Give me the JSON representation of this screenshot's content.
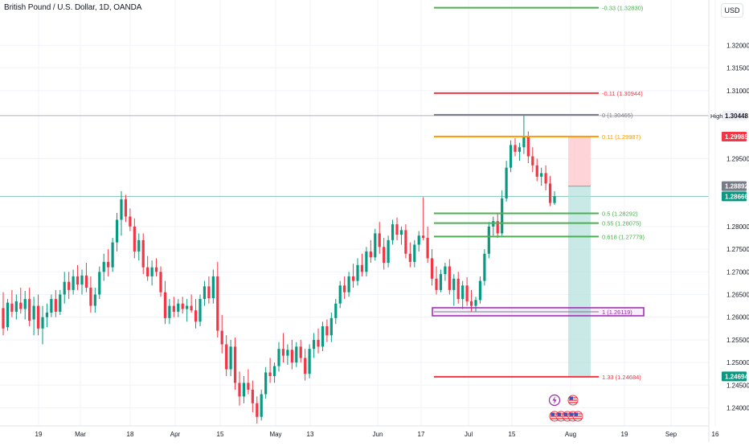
{
  "header": {
    "symbol_title": "British Pound / U.S. Dollar, 1D, OANDA",
    "currency_button": "USD"
  },
  "colors": {
    "up": "#089981",
    "down": "#f23645",
    "grid": "#f0f3fa",
    "axis_text": "#131722",
    "fib_green": "#4caf50",
    "fib_red": "#f23645",
    "fib_gray": "#787b86",
    "fib_orange": "#ff9800",
    "rect_purple": "#9c27b0",
    "target_zone": "#b2dfdb",
    "stop_zone": "#ffcdd2"
  },
  "price_axis": {
    "ticks": [
      "1.32000",
      "1.31500",
      "1.31000",
      "1.29500",
      "1.28000",
      "1.27500",
      "1.27000",
      "1.26500",
      "1.26000",
      "1.25500",
      "1.25000",
      "1.24500",
      "1.24000"
    ],
    "badges": [
      {
        "label": "High",
        "value": "1.30448",
        "style": "high"
      },
      {
        "label": "",
        "value": "1.29985",
        "style": "red"
      },
      {
        "label": "",
        "value": "1.28892",
        "style": "gray"
      },
      {
        "label": "",
        "value": "1.28666",
        "style": "green"
      },
      {
        "label": "",
        "value": "1.24694",
        "style": "green"
      }
    ]
  },
  "time_axis": {
    "labels": [
      "19",
      "Mar",
      "18",
      "Apr",
      "15",
      "May",
      "13",
      "Jun",
      "17",
      "Jul",
      "15",
      "Aug",
      "19",
      "Sep",
      "16"
    ]
  },
  "fib_levels": [
    {
      "ratio": "-0.33",
      "price": 1.3283,
      "label": "-0.33 (1.32830)",
      "color": "green"
    },
    {
      "ratio": "-0.11",
      "price": 1.30944,
      "label": "-0.11 (1.30944)",
      "color": "red"
    },
    {
      "ratio": "0",
      "price": 1.30465,
      "label": "0 (1.30465)",
      "color": "gray"
    },
    {
      "ratio": "0.11",
      "price": 1.29987,
      "label": "0.11 (1.29987)",
      "color": "orange"
    },
    {
      "ratio": "0.5",
      "price": 1.28292,
      "label": "0.5 (1.28292)",
      "color": "green"
    },
    {
      "ratio": "0.55",
      "price": 1.28075,
      "label": "0.55 (1.28075)",
      "color": "green"
    },
    {
      "ratio": "0.618",
      "price": 1.27779,
      "label": "0.618 (1.27779)",
      "color": "green"
    },
    {
      "ratio": "1",
      "price": 1.26119,
      "label": "1 (1.26119)",
      "color": "purple"
    },
    {
      "ratio": "1.33",
      "price": 1.24684,
      "label": "1.33 (1.24684)",
      "color": "red"
    }
  ],
  "position_tool": {
    "entry": 1.28892,
    "stop": 1.29985,
    "target": 1.24694
  },
  "event_icons": {
    "top_row": [
      "lightning-icon",
      "us-flag-icon"
    ],
    "bottom_row": [
      "us-flag-icon",
      "us-flag-icon",
      "us-flag-icon",
      "us-flag-icon",
      "us-flag-icon"
    ]
  },
  "chart_data": {
    "type": "candlestick",
    "symbol": "British Pound / U.S. Dollar",
    "interval": "1D",
    "ylim": [
      1.236,
      1.33
    ],
    "candles": [
      {
        "o": 1.262,
        "h": 1.2655,
        "l": 1.256,
        "c": 1.2575
      },
      {
        "o": 1.2578,
        "h": 1.264,
        "l": 1.257,
        "c": 1.2632
      },
      {
        "o": 1.263,
        "h": 1.266,
        "l": 1.26,
        "c": 1.2612
      },
      {
        "o": 1.2612,
        "h": 1.265,
        "l": 1.2595,
        "c": 1.2635
      },
      {
        "o": 1.2632,
        "h": 1.2665,
        "l": 1.2608,
        "c": 1.2618
      },
      {
        "o": 1.2618,
        "h": 1.2658,
        "l": 1.2595,
        "c": 1.264
      },
      {
        "o": 1.264,
        "h": 1.2665,
        "l": 1.258,
        "c": 1.2592
      },
      {
        "o": 1.2595,
        "h": 1.2645,
        "l": 1.256,
        "c": 1.2625
      },
      {
        "o": 1.2625,
        "h": 1.265,
        "l": 1.256,
        "c": 1.2575
      },
      {
        "o": 1.2575,
        "h": 1.2625,
        "l": 1.254,
        "c": 1.26
      },
      {
        "o": 1.26,
        "h": 1.263,
        "l": 1.2578,
        "c": 1.261
      },
      {
        "o": 1.261,
        "h": 1.265,
        "l": 1.26,
        "c": 1.264
      },
      {
        "o": 1.264,
        "h": 1.266,
        "l": 1.26,
        "c": 1.2612
      },
      {
        "o": 1.2612,
        "h": 1.266,
        "l": 1.2605,
        "c": 1.265
      },
      {
        "o": 1.265,
        "h": 1.27,
        "l": 1.263,
        "c": 1.2678
      },
      {
        "o": 1.2678,
        "h": 1.27,
        "l": 1.264,
        "c": 1.266
      },
      {
        "o": 1.266,
        "h": 1.2705,
        "l": 1.265,
        "c": 1.269
      },
      {
        "o": 1.269,
        "h": 1.2715,
        "l": 1.266,
        "c": 1.2672
      },
      {
        "o": 1.2672,
        "h": 1.2705,
        "l": 1.265,
        "c": 1.2692
      },
      {
        "o": 1.2692,
        "h": 1.272,
        "l": 1.2655,
        "c": 1.2665
      },
      {
        "o": 1.2665,
        "h": 1.269,
        "l": 1.261,
        "c": 1.2625
      },
      {
        "o": 1.2625,
        "h": 1.2665,
        "l": 1.261,
        "c": 1.265
      },
      {
        "o": 1.265,
        "h": 1.2712,
        "l": 1.264,
        "c": 1.27
      },
      {
        "o": 1.27,
        "h": 1.274,
        "l": 1.268,
        "c": 1.2722
      },
      {
        "o": 1.2722,
        "h": 1.275,
        "l": 1.269,
        "c": 1.271
      },
      {
        "o": 1.271,
        "h": 1.2775,
        "l": 1.27,
        "c": 1.2765
      },
      {
        "o": 1.2765,
        "h": 1.283,
        "l": 1.2745,
        "c": 1.2815
      },
      {
        "o": 1.2815,
        "h": 1.2878,
        "l": 1.278,
        "c": 1.286
      },
      {
        "o": 1.286,
        "h": 1.287,
        "l": 1.281,
        "c": 1.2822
      },
      {
        "o": 1.2822,
        "h": 1.284,
        "l": 1.279,
        "c": 1.28
      },
      {
        "o": 1.28,
        "h": 1.2818,
        "l": 1.273,
        "c": 1.2745
      },
      {
        "o": 1.2745,
        "h": 1.2785,
        "l": 1.2725,
        "c": 1.277
      },
      {
        "o": 1.277,
        "h": 1.2785,
        "l": 1.2695,
        "c": 1.271
      },
      {
        "o": 1.271,
        "h": 1.2735,
        "l": 1.268,
        "c": 1.269
      },
      {
        "o": 1.269,
        "h": 1.2725,
        "l": 1.267,
        "c": 1.271
      },
      {
        "o": 1.271,
        "h": 1.273,
        "l": 1.269,
        "c": 1.27
      },
      {
        "o": 1.27,
        "h": 1.2712,
        "l": 1.2645,
        "c": 1.2655
      },
      {
        "o": 1.2655,
        "h": 1.268,
        "l": 1.2585,
        "c": 1.2598
      },
      {
        "o": 1.2598,
        "h": 1.264,
        "l": 1.2585,
        "c": 1.2625
      },
      {
        "o": 1.2625,
        "h": 1.2645,
        "l": 1.26,
        "c": 1.2612
      },
      {
        "o": 1.2612,
        "h": 1.264,
        "l": 1.26,
        "c": 1.263
      },
      {
        "o": 1.263,
        "h": 1.2645,
        "l": 1.2608,
        "c": 1.2618
      },
      {
        "o": 1.2618,
        "h": 1.264,
        "l": 1.259,
        "c": 1.2625
      },
      {
        "o": 1.2625,
        "h": 1.265,
        "l": 1.261,
        "c": 1.2615
      },
      {
        "o": 1.2615,
        "h": 1.264,
        "l": 1.2575,
        "c": 1.259
      },
      {
        "o": 1.259,
        "h": 1.265,
        "l": 1.258,
        "c": 1.264
      },
      {
        "o": 1.264,
        "h": 1.268,
        "l": 1.2625,
        "c": 1.2668
      },
      {
        "o": 1.2668,
        "h": 1.269,
        "l": 1.263,
        "c": 1.2642
      },
      {
        "o": 1.2642,
        "h": 1.2705,
        "l": 1.263,
        "c": 1.269
      },
      {
        "o": 1.269,
        "h": 1.2722,
        "l": 1.2555,
        "c": 1.257
      },
      {
        "o": 1.257,
        "h": 1.2605,
        "l": 1.252,
        "c": 1.254
      },
      {
        "o": 1.254,
        "h": 1.256,
        "l": 1.247,
        "c": 1.2485
      },
      {
        "o": 1.2485,
        "h": 1.255,
        "l": 1.247,
        "c": 1.2535
      },
      {
        "o": 1.2535,
        "h": 1.2555,
        "l": 1.244,
        "c": 1.2455
      },
      {
        "o": 1.2455,
        "h": 1.248,
        "l": 1.2405,
        "c": 1.2425
      },
      {
        "o": 1.2425,
        "h": 1.247,
        "l": 1.241,
        "c": 1.2455
      },
      {
        "o": 1.2455,
        "h": 1.2485,
        "l": 1.243,
        "c": 1.244
      },
      {
        "o": 1.244,
        "h": 1.246,
        "l": 1.239,
        "c": 1.241
      },
      {
        "o": 1.241,
        "h": 1.2425,
        "l": 1.2365,
        "c": 1.238
      },
      {
        "o": 1.238,
        "h": 1.244,
        "l": 1.2372,
        "c": 1.243
      },
      {
        "o": 1.243,
        "h": 1.249,
        "l": 1.242,
        "c": 1.2478
      },
      {
        "o": 1.2478,
        "h": 1.251,
        "l": 1.2455,
        "c": 1.247
      },
      {
        "o": 1.247,
        "h": 1.25,
        "l": 1.2455,
        "c": 1.2492
      },
      {
        "o": 1.2492,
        "h": 1.2545,
        "l": 1.248,
        "c": 1.253
      },
      {
        "o": 1.253,
        "h": 1.2565,
        "l": 1.25,
        "c": 1.2515
      },
      {
        "o": 1.2515,
        "h": 1.254,
        "l": 1.2495,
        "c": 1.2528
      },
      {
        "o": 1.2528,
        "h": 1.255,
        "l": 1.2485,
        "c": 1.25
      },
      {
        "o": 1.25,
        "h": 1.2545,
        "l": 1.249,
        "c": 1.2535
      },
      {
        "o": 1.2535,
        "h": 1.255,
        "l": 1.25,
        "c": 1.251
      },
      {
        "o": 1.251,
        "h": 1.253,
        "l": 1.246,
        "c": 1.2475
      },
      {
        "o": 1.2475,
        "h": 1.254,
        "l": 1.2465,
        "c": 1.253
      },
      {
        "o": 1.253,
        "h": 1.2565,
        "l": 1.251,
        "c": 1.255
      },
      {
        "o": 1.255,
        "h": 1.2575,
        "l": 1.252,
        "c": 1.2535
      },
      {
        "o": 1.2535,
        "h": 1.259,
        "l": 1.2525,
        "c": 1.258
      },
      {
        "o": 1.258,
        "h": 1.2595,
        "l": 1.2545,
        "c": 1.256
      },
      {
        "o": 1.256,
        "h": 1.261,
        "l": 1.2545,
        "c": 1.2598
      },
      {
        "o": 1.2598,
        "h": 1.264,
        "l": 1.2585,
        "c": 1.263
      },
      {
        "o": 1.263,
        "h": 1.268,
        "l": 1.262,
        "c": 1.267
      },
      {
        "o": 1.267,
        "h": 1.269,
        "l": 1.264,
        "c": 1.2655
      },
      {
        "o": 1.2655,
        "h": 1.27,
        "l": 1.2645,
        "c": 1.269
      },
      {
        "o": 1.269,
        "h": 1.2718,
        "l": 1.2665,
        "c": 1.268
      },
      {
        "o": 1.268,
        "h": 1.273,
        "l": 1.267,
        "c": 1.2715
      },
      {
        "o": 1.2715,
        "h": 1.274,
        "l": 1.269,
        "c": 1.27
      },
      {
        "o": 1.27,
        "h": 1.2755,
        "l": 1.269,
        "c": 1.2745
      },
      {
        "o": 1.2745,
        "h": 1.277,
        "l": 1.272,
        "c": 1.2732
      },
      {
        "o": 1.2732,
        "h": 1.2795,
        "l": 1.2725,
        "c": 1.2785
      },
      {
        "o": 1.2785,
        "h": 1.281,
        "l": 1.274,
        "c": 1.2755
      },
      {
        "o": 1.2755,
        "h": 1.2775,
        "l": 1.2705,
        "c": 1.272
      },
      {
        "o": 1.272,
        "h": 1.278,
        "l": 1.271,
        "c": 1.277
      },
      {
        "o": 1.277,
        "h": 1.2815,
        "l": 1.276,
        "c": 1.2805
      },
      {
        "o": 1.2805,
        "h": 1.282,
        "l": 1.277,
        "c": 1.2782
      },
      {
        "o": 1.2782,
        "h": 1.28,
        "l": 1.276,
        "c": 1.2792
      },
      {
        "o": 1.2792,
        "h": 1.2805,
        "l": 1.273,
        "c": 1.274
      },
      {
        "o": 1.274,
        "h": 1.2765,
        "l": 1.271,
        "c": 1.2722
      },
      {
        "o": 1.2722,
        "h": 1.277,
        "l": 1.271,
        "c": 1.276
      },
      {
        "o": 1.276,
        "h": 1.279,
        "l": 1.2745,
        "c": 1.278
      },
      {
        "o": 1.278,
        "h": 1.2865,
        "l": 1.277,
        "c": 1.2775
      },
      {
        "o": 1.2775,
        "h": 1.28,
        "l": 1.272,
        "c": 1.273
      },
      {
        "o": 1.273,
        "h": 1.275,
        "l": 1.267,
        "c": 1.2685
      },
      {
        "o": 1.2685,
        "h": 1.2712,
        "l": 1.265,
        "c": 1.266
      },
      {
        "o": 1.266,
        "h": 1.2705,
        "l": 1.2655,
        "c": 1.2695
      },
      {
        "o": 1.2695,
        "h": 1.272,
        "l": 1.268,
        "c": 1.2712
      },
      {
        "o": 1.2712,
        "h": 1.2728,
        "l": 1.265,
        "c": 1.266
      },
      {
        "o": 1.266,
        "h": 1.2695,
        "l": 1.2625,
        "c": 1.2685
      },
      {
        "o": 1.2685,
        "h": 1.27,
        "l": 1.263,
        "c": 1.264
      },
      {
        "o": 1.264,
        "h": 1.268,
        "l": 1.2618,
        "c": 1.267
      },
      {
        "o": 1.267,
        "h": 1.2688,
        "l": 1.2625,
        "c": 1.2635
      },
      {
        "o": 1.2635,
        "h": 1.266,
        "l": 1.2612,
        "c": 1.2625
      },
      {
        "o": 1.2625,
        "h": 1.2645,
        "l": 1.2612,
        "c": 1.2638
      },
      {
        "o": 1.2638,
        "h": 1.269,
        "l": 1.263,
        "c": 1.268
      },
      {
        "o": 1.268,
        "h": 1.275,
        "l": 1.267,
        "c": 1.274
      },
      {
        "o": 1.274,
        "h": 1.281,
        "l": 1.273,
        "c": 1.28
      },
      {
        "o": 1.28,
        "h": 1.2822,
        "l": 1.278,
        "c": 1.2812
      },
      {
        "o": 1.2812,
        "h": 1.283,
        "l": 1.2775,
        "c": 1.2785
      },
      {
        "o": 1.2785,
        "h": 1.288,
        "l": 1.278,
        "c": 1.2862
      },
      {
        "o": 1.2862,
        "h": 1.2945,
        "l": 1.2855,
        "c": 1.293
      },
      {
        "o": 1.293,
        "h": 1.299,
        "l": 1.292,
        "c": 1.298
      },
      {
        "o": 1.298,
        "h": 1.2995,
        "l": 1.2955,
        "c": 1.2965
      },
      {
        "o": 1.2965,
        "h": 1.2985,
        "l": 1.2945,
        "c": 1.2975
      },
      {
        "o": 1.2975,
        "h": 1.3045,
        "l": 1.296,
        "c": 1.3
      },
      {
        "o": 1.3,
        "h": 1.301,
        "l": 1.294,
        "c": 1.2955
      },
      {
        "o": 1.2955,
        "h": 1.2975,
        "l": 1.292,
        "c": 1.2935
      },
      {
        "o": 1.2935,
        "h": 1.295,
        "l": 1.29,
        "c": 1.291
      },
      {
        "o": 1.291,
        "h": 1.293,
        "l": 1.289,
        "c": 1.2918
      },
      {
        "o": 1.2918,
        "h": 1.2935,
        "l": 1.288,
        "c": 1.2895
      },
      {
        "o": 1.2895,
        "h": 1.2912,
        "l": 1.2845,
        "c": 1.2852
      },
      {
        "o": 1.2852,
        "h": 1.2878,
        "l": 1.2848,
        "c": 1.2867
      }
    ]
  }
}
